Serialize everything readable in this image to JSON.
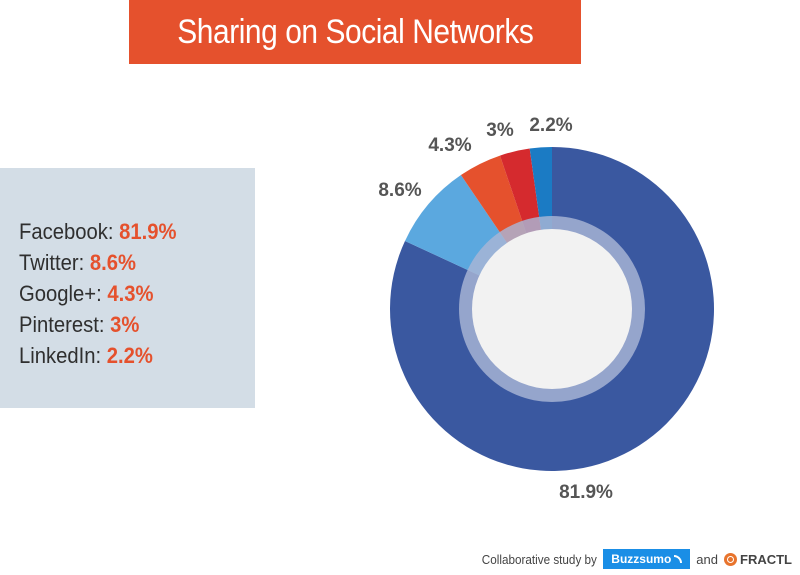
{
  "title": "Sharing on Social Networks",
  "legend": [
    {
      "label": "Facebook:",
      "value": "81.9%"
    },
    {
      "label": "Twitter:",
      "value": "8.6%"
    },
    {
      "label": "Google+:",
      "value": "4.3%"
    },
    {
      "label": "Pinterest:",
      "value": "3%"
    },
    {
      "label": "LinkedIn:",
      "value": "2.2%"
    }
  ],
  "chart_data": {
    "type": "pie",
    "style": "donut",
    "categories": [
      "Facebook",
      "Twitter",
      "Google+",
      "Pinterest",
      "LinkedIn"
    ],
    "values": [
      81.9,
      8.6,
      4.3,
      3,
      2.2
    ],
    "labels": [
      "81.9%",
      "8.6%",
      "4.3%",
      "3%",
      "2.2%"
    ],
    "colors": [
      "#3a58a0",
      "#5ba8df",
      "#e5512d",
      "#d52a2e",
      "#1b7bc4"
    ],
    "inner_ring_color": "#a9b6d6",
    "center_color": "#f2f2f2",
    "legend_placement": "left",
    "title": "Sharing on Social Networks"
  },
  "footer": {
    "text": "Collaborative study by",
    "logo1": "Buzzsumo",
    "and": "and",
    "logo2": "FRACTL"
  }
}
